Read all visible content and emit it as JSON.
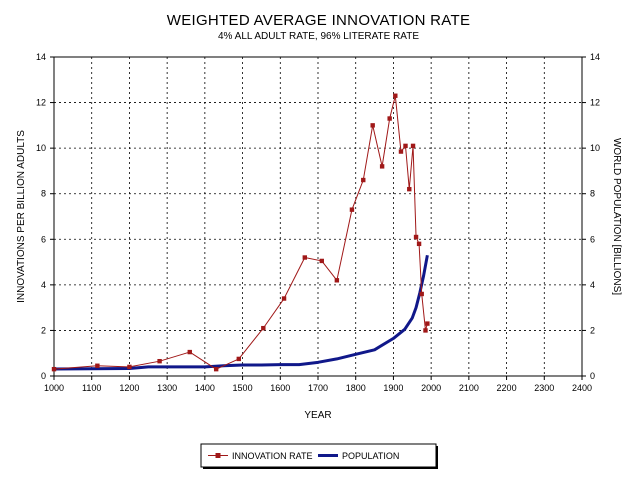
{
  "chart_data": {
    "type": "line",
    "title": "WEIGHTED AVERAGE INNOVATION RATE",
    "subtitle": "4% ALL ADULT RATE, 96% LITERATE RATE",
    "xlabel": "YEAR",
    "ylabel_left": "INNOVATIONS PER BILLION ADULTS",
    "ylabel_right": "WORLD POPULATION [BILLIONS]",
    "xlim": [
      1000,
      2400
    ],
    "ylim": [
      0,
      14
    ],
    "x_ticks": [
      "1000",
      "1100",
      "1200",
      "1300",
      "1400",
      "1500",
      "1600",
      "1700",
      "1800",
      "1900",
      "2000",
      "2100",
      "2200",
      "2300",
      "2400"
    ],
    "y_ticks": [
      "0",
      "2",
      "4",
      "6",
      "8",
      "10",
      "12",
      "14"
    ],
    "grid": true,
    "legend_position": "bottom",
    "series": [
      {
        "name": "INNOVATION RATE",
        "axis": "left",
        "color": "#a01818",
        "marker": "square",
        "points": [
          [
            1000,
            0.3
          ],
          [
            1115,
            0.45
          ],
          [
            1200,
            0.4
          ],
          [
            1280,
            0.65
          ],
          [
            1360,
            1.05
          ],
          [
            1430,
            0.3
          ],
          [
            1490,
            0.75
          ],
          [
            1555,
            2.1
          ],
          [
            1610,
            3.4
          ],
          [
            1665,
            5.2
          ],
          [
            1710,
            5.05
          ],
          [
            1750,
            4.2
          ],
          [
            1790,
            7.3
          ],
          [
            1820,
            8.6
          ],
          [
            1845,
            11.0
          ],
          [
            1870,
            9.2
          ],
          [
            1890,
            11.3
          ],
          [
            1905,
            12.3
          ],
          [
            1920,
            9.85
          ],
          [
            1932,
            10.1
          ],
          [
            1942,
            8.2
          ],
          [
            1952,
            10.1
          ],
          [
            1960,
            6.1
          ],
          [
            1968,
            5.8
          ],
          [
            1975,
            3.6
          ],
          [
            1985,
            2.0
          ],
          [
            1990,
            2.3
          ]
        ]
      },
      {
        "name": "POPULATION",
        "axis": "right",
        "color": "#10188a",
        "marker": "none",
        "points": [
          [
            1000,
            0.31
          ],
          [
            1100,
            0.32
          ],
          [
            1200,
            0.33
          ],
          [
            1250,
            0.4
          ],
          [
            1300,
            0.4
          ],
          [
            1350,
            0.4
          ],
          [
            1400,
            0.4
          ],
          [
            1450,
            0.45
          ],
          [
            1500,
            0.48
          ],
          [
            1550,
            0.48
          ],
          [
            1600,
            0.5
          ],
          [
            1650,
            0.5
          ],
          [
            1700,
            0.6
          ],
          [
            1750,
            0.75
          ],
          [
            1800,
            0.95
          ],
          [
            1850,
            1.15
          ],
          [
            1900,
            1.65
          ],
          [
            1930,
            2.05
          ],
          [
            1950,
            2.55
          ],
          [
            1960,
            3.0
          ],
          [
            1970,
            3.65
          ],
          [
            1980,
            4.4
          ],
          [
            1990,
            5.3
          ]
        ]
      }
    ]
  }
}
